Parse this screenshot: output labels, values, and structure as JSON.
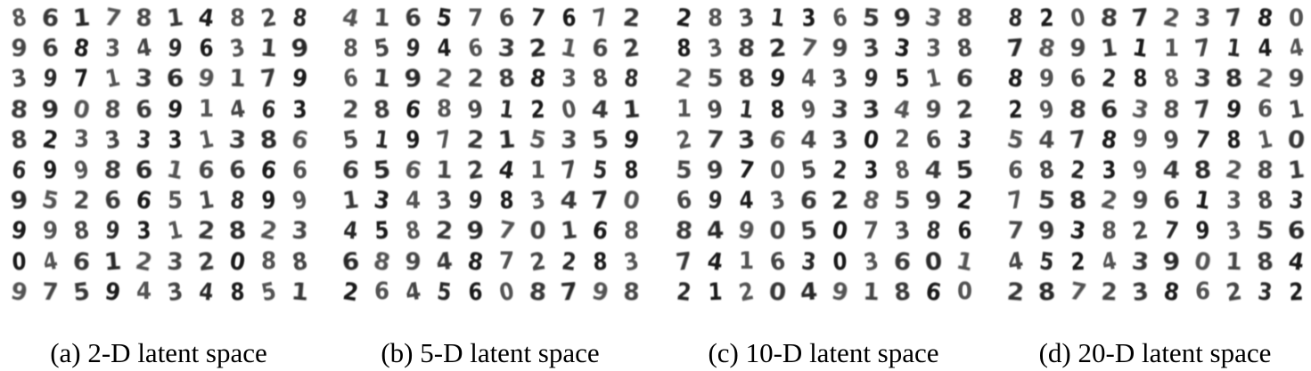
{
  "panels": [
    {
      "caption": "(a) 2-D latent space",
      "digits": [
        "8617814828",
        "9683496319",
        "3971369179",
        "8908691463",
        "8233331386",
        "6998616666",
        "9526651899",
        "9989312823",
        "0461232088",
        "9759434851"
      ]
    },
    {
      "caption": "(b) 5-D latent space",
      "digits": [
        "4165767672",
        "8594632162",
        "6192288388",
        "2868912041",
        "5197215359",
        "6561241758",
        "1343983470",
        "4582970168",
        "6894872283",
        "2645608798"
      ]
    },
    {
      "caption": "(c) 10-D latent space",
      "digits": [
        "2831365938",
        "8382793338",
        "2589439516",
        "1918933492",
        "2736430263",
        "5970523845",
        "6943628592",
        "8490507386",
        "7416303601",
        "2120491860"
      ]
    },
    {
      "caption": "(d) 20-D latent space",
      "digits": [
        "8208723780",
        "7891117144",
        "8962883829",
        "2986387961",
        "5478997810",
        "6823948281",
        "7582961383",
        "7938279356",
        "4524390184",
        "2872386232"
      ]
    }
  ]
}
